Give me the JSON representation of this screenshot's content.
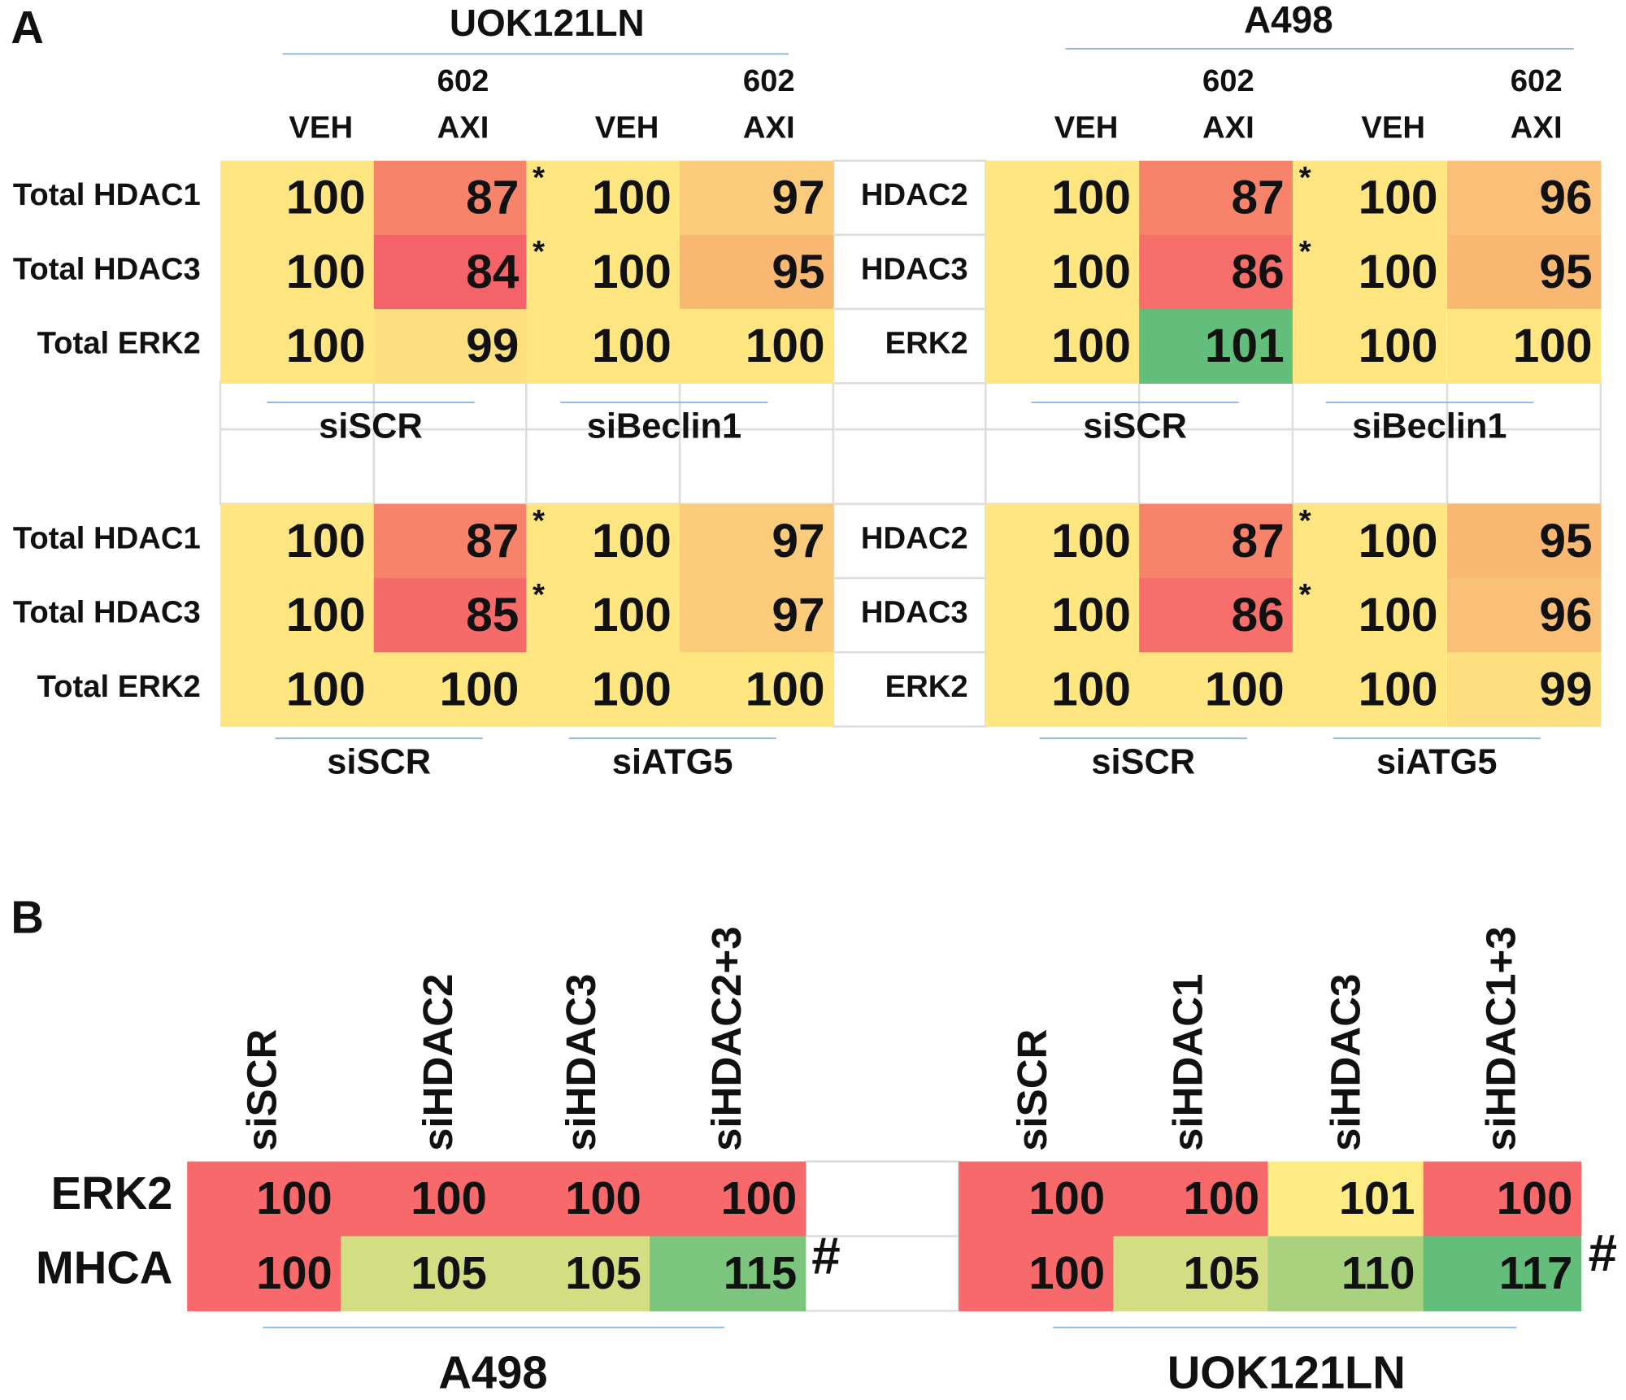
{
  "panel_a": {
    "label": "A",
    "cell_lines": [
      "UOK121LN",
      "A498"
    ],
    "columns": [
      [
        "VEH"
      ],
      [
        "602",
        "AXI"
      ],
      [
        "VEH"
      ],
      [
        "602",
        "AXI"
      ],
      [
        "VEH"
      ],
      [
        "602",
        "AXI"
      ],
      [
        "VEH"
      ],
      [
        "602",
        "AXI"
      ]
    ],
    "row_labels": [
      "Total HDAC1",
      "Total HDAC3",
      "Total ERK2"
    ],
    "middle_row_labels": [
      "HDAC2",
      "HDAC3",
      "ERK2"
    ],
    "marker": "*",
    "tables": [
      {
        "rows": [
          [
            100,
            87,
            100,
            97,
            100,
            87,
            100,
            96
          ],
          [
            100,
            84,
            100,
            95,
            100,
            86,
            100,
            95
          ],
          [
            100,
            99,
            100,
            100,
            100,
            101,
            100,
            100
          ]
        ],
        "colors": [
          [
            "#ffe680",
            "#f8836b",
            "#ffe680",
            "#fbcb7c",
            "#ffe680",
            "#f8836b",
            "#ffe680",
            "#fac077"
          ],
          [
            "#ffe680",
            "#f4636a",
            "#ffe680",
            "#f9b872",
            "#ffe680",
            "#f66f6a",
            "#ffe680",
            "#f9b872"
          ],
          [
            "#ffe680",
            "#fedf80",
            "#ffe680",
            "#ffe680",
            "#ffe680",
            "#63be7b",
            "#ffe680",
            "#ffe680"
          ]
        ],
        "groups": [
          "siSCR",
          "siBeclin1",
          "siSCR",
          "siBeclin1"
        ]
      },
      {
        "rows": [
          [
            100,
            87,
            100,
            97,
            100,
            87,
            100,
            95
          ],
          [
            100,
            85,
            100,
            97,
            100,
            86,
            100,
            96
          ],
          [
            100,
            100,
            100,
            100,
            100,
            100,
            100,
            99
          ]
        ],
        "colors": [
          [
            "#ffe680",
            "#f8836b",
            "#ffe680",
            "#fbcb7c",
            "#ffe680",
            "#f8836b",
            "#ffe680",
            "#f9b872"
          ],
          [
            "#ffe680",
            "#f56b6a",
            "#ffe680",
            "#fbcb7c",
            "#ffe680",
            "#f66f6a",
            "#ffe680",
            "#fac077"
          ],
          [
            "#ffe680",
            "#ffe680",
            "#ffe680",
            "#ffe680",
            "#ffe680",
            "#ffe680",
            "#ffe680",
            "#fedf80"
          ]
        ],
        "groups": [
          "siSCR",
          "siATG5",
          "siSCR",
          "siATG5"
        ]
      }
    ]
  },
  "panel_b": {
    "label": "B",
    "columns": [
      "siSCR",
      "siHDAC2",
      "siHDAC3",
      "siHDAC2+3",
      "siSCR",
      "siHDAC1",
      "siHDAC3",
      "siHDAC1+3"
    ],
    "row_labels": [
      "ERK2",
      "MHCA"
    ],
    "rows": [
      [
        100,
        100,
        100,
        100,
        100,
        100,
        101,
        100
      ],
      [
        100,
        105,
        105,
        115,
        100,
        105,
        110,
        117
      ]
    ],
    "colors": [
      [
        "#f8696b",
        "#f8696b",
        "#f8696b",
        "#f8696b",
        "#f8696b",
        "#f8696b",
        "#ffeb84",
        "#f8696b"
      ],
      [
        "#f8696b",
        "#d2de81",
        "#d2de81",
        "#7bc67c",
        "#f8696b",
        "#d2de81",
        "#a9d27f",
        "#63be7b"
      ]
    ],
    "marker": "#",
    "groups": [
      "A498",
      "UOK121LN"
    ]
  }
}
